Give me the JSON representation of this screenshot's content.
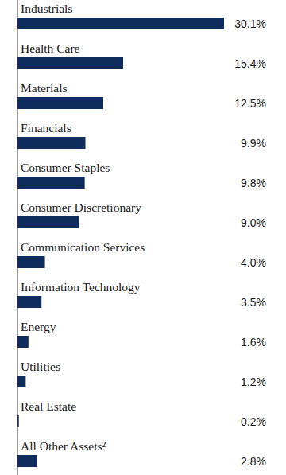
{
  "chart_data": {
    "type": "bar",
    "orientation": "horizontal",
    "categories": [
      "Industrials",
      "Health Care",
      "Materials",
      "Financials",
      "Consumer Staples",
      "Consumer Discretionary",
      "Communication Services",
      "Information Technology",
      "Energy",
      "Utilities",
      "Real Estate",
      "All Other Assets²"
    ],
    "values": [
      30.1,
      15.4,
      12.5,
      9.9,
      9.8,
      9.0,
      4.0,
      3.5,
      1.6,
      1.2,
      0.2,
      2.8
    ],
    "value_labels": [
      "30.1%",
      "15.4%",
      "12.5%",
      "9.9%",
      "9.8%",
      "9.0%",
      "4.0%",
      "3.5%",
      "1.6%",
      "1.2%",
      "0.2%",
      "2.8%"
    ],
    "color": "#0f2d5c",
    "xlim": [
      0,
      30.1
    ],
    "data_labels": true,
    "tick_labels": false,
    "grid": false
  }
}
